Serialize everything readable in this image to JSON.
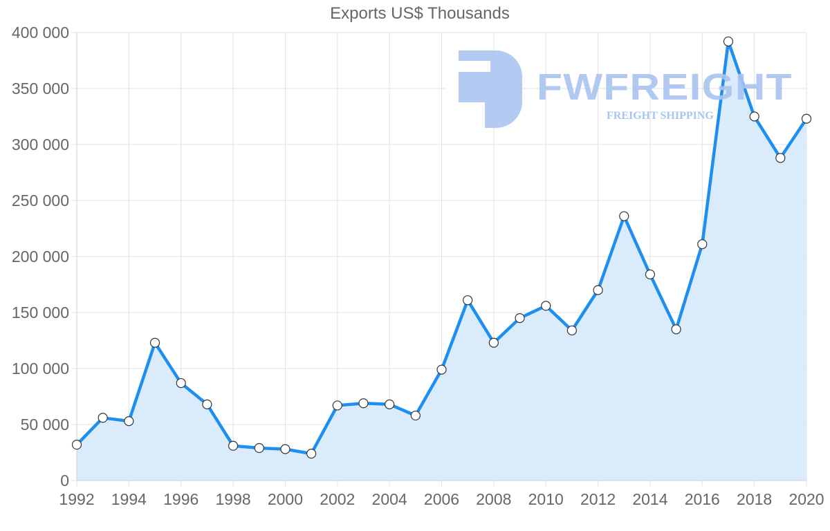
{
  "chart_data": {
    "type": "area",
    "title": "Exports US$ Thousands",
    "xlabel": "",
    "ylabel": "",
    "x": [
      1992,
      1993,
      1994,
      1995,
      1996,
      1997,
      1998,
      1999,
      2000,
      2001,
      2002,
      2003,
      2004,
      2005,
      2006,
      2007,
      2008,
      2009,
      2010,
      2011,
      2012,
      2013,
      2014,
      2015,
      2016,
      2017,
      2018,
      2019,
      2020
    ],
    "series": [
      {
        "name": "Exports US$ Thousands",
        "values": [
          32000,
          56000,
          53000,
          123000,
          87000,
          68000,
          31000,
          29000,
          28000,
          24000,
          67000,
          69000,
          68000,
          58000,
          99000,
          161000,
          123000,
          145000,
          156000,
          134000,
          170000,
          236000,
          184000,
          135000,
          211000,
          392000,
          325000,
          288000,
          323000
        ]
      }
    ],
    "ylim": [
      0,
      400000
    ],
    "xlim": [
      1992,
      2020
    ],
    "y_ticks": [
      0,
      50000,
      100000,
      150000,
      200000,
      250000,
      300000,
      350000,
      400000
    ],
    "y_tick_labels": [
      "0",
      "50 000",
      "100 000",
      "150 000",
      "200 000",
      "250 000",
      "300 000",
      "350 000",
      "400 000"
    ],
    "x_tick_labels": [
      "1992",
      "1994",
      "1996",
      "1998",
      "2000",
      "2002",
      "2004",
      "2006",
      "2008",
      "2010",
      "2012",
      "2014",
      "2016",
      "2018",
      "2020"
    ],
    "grid": true,
    "legend": "none",
    "colors": {
      "line": "#1e8ff0",
      "fill": "#d8ebfc",
      "point_fill": "#ffffff",
      "point_stroke": "#333333",
      "grid": "#e2e2e2",
      "axis_text": "#666666"
    }
  },
  "watermark": {
    "brand": "FWFREIGHT",
    "tagline": "FREIGHT SHIPPING"
  }
}
